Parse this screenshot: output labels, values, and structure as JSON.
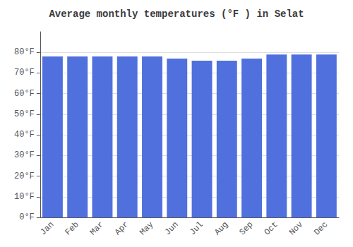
{
  "chart_data": {
    "type": "bar",
    "title": "Average monthly temperatures (°F ) in Selat",
    "categories": [
      "Jan",
      "Feb",
      "Mar",
      "Apr",
      "May",
      "Jun",
      "Jul",
      "Aug",
      "Sep",
      "Oct",
      "Nov",
      "Dec"
    ],
    "values": [
      78,
      78,
      78,
      78,
      78,
      77,
      76,
      76,
      77,
      79,
      79,
      79
    ],
    "ylim": [
      0,
      90
    ],
    "yticks": [
      {
        "value": 0,
        "label": "0°F"
      },
      {
        "value": 10,
        "label": "10°F"
      },
      {
        "value": 20,
        "label": "20°F"
      },
      {
        "value": 30,
        "label": "30°F"
      },
      {
        "value": 40,
        "label": "40°F"
      },
      {
        "value": 50,
        "label": "50°F"
      },
      {
        "value": 60,
        "label": "60°F"
      },
      {
        "value": 70,
        "label": "70°F"
      },
      {
        "value": 80,
        "label": "80°F"
      }
    ],
    "grid": true
  }
}
